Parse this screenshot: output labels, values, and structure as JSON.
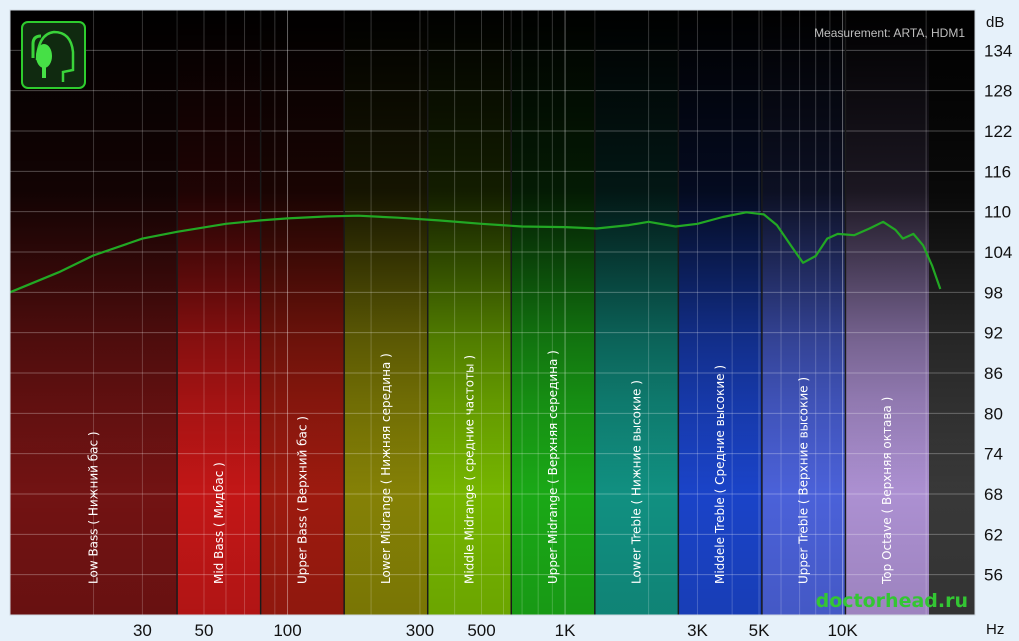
{
  "chart_data": {
    "type": "line",
    "measurement_label": "Measurement: ARTA, HDM1",
    "watermark": "doctorhead.ru",
    "y_unit": "dB",
    "x_unit": "Hz",
    "x_scale": "log",
    "xlim": [
      10,
      30000
    ],
    "ylim": [
      50,
      140
    ],
    "y_ticks": [
      134,
      128,
      122,
      116,
      110,
      104,
      98,
      92,
      86,
      80,
      74,
      68,
      62,
      56
    ],
    "x_tick_labels": [
      {
        "value": 30,
        "label": "30"
      },
      {
        "value": 50,
        "label": "50"
      },
      {
        "value": 100,
        "label": "100"
      },
      {
        "value": 300,
        "label": "300"
      },
      {
        "value": 500,
        "label": "500"
      },
      {
        "value": 1000,
        "label": "1K"
      },
      {
        "value": 3000,
        "label": "3K"
      },
      {
        "value": 5000,
        "label": "5K"
      },
      {
        "value": 10000,
        "label": "10K"
      }
    ],
    "grid": true,
    "bands": [
      {
        "label": "Low Bass ( Нижний бас )",
        "from": 10,
        "to": 40,
        "color": "#7a1414"
      },
      {
        "label": "Mid Bass ( Мидбас )",
        "from": 40,
        "to": 80,
        "color": "#d01818"
      },
      {
        "label": "Upper Bass ( Верхний бас )",
        "from": 80,
        "to": 160,
        "color": "#a81c10"
      },
      {
        "label": "Lower Midrange ( Нижняя середина )",
        "from": 160,
        "to": 320,
        "color": "#8e8a06"
      },
      {
        "label": "Middle Midrange ( средние частоты )",
        "from": 320,
        "to": 640,
        "color": "#7ec200"
      },
      {
        "label": "Upper Midrange ( Верхняя середина )",
        "from": 640,
        "to": 1280,
        "color": "#1cb418"
      },
      {
        "label": "Lower Treble ( Нижние высокие )",
        "from": 1280,
        "to": 2560,
        "color": "#129a8a"
      },
      {
        "label": "Middele Treble ( Средние высокие )",
        "from": 2560,
        "to": 5120,
        "color": "#1c48d6"
      },
      {
        "label": "Upper Treble ( Верхние высокие )",
        "from": 5120,
        "to": 10240,
        "color": "#5068e8"
      },
      {
        "label": "Top Octave ( Верхняя октава )",
        "from": 10240,
        "to": 20480,
        "color": "#b89ae0"
      }
    ],
    "series": [
      {
        "color": "#22a824",
        "points": [
          [
            10,
            98
          ],
          [
            15,
            101
          ],
          [
            20,
            103.5
          ],
          [
            30,
            106
          ],
          [
            40,
            107
          ],
          [
            60,
            108.2
          ],
          [
            80,
            108.7
          ],
          [
            100,
            109
          ],
          [
            140,
            109.3
          ],
          [
            180,
            109.4
          ],
          [
            250,
            109.1
          ],
          [
            350,
            108.7
          ],
          [
            500,
            108.2
          ],
          [
            700,
            107.8
          ],
          [
            1000,
            107.7
          ],
          [
            1300,
            107.5
          ],
          [
            1700,
            108
          ],
          [
            2000,
            108.5
          ],
          [
            2500,
            107.8
          ],
          [
            3000,
            108.2
          ],
          [
            3700,
            109.2
          ],
          [
            4500,
            109.9
          ],
          [
            5200,
            109.6
          ],
          [
            5800,
            108
          ],
          [
            6500,
            105
          ],
          [
            7200,
            102.4
          ],
          [
            8000,
            103.4
          ],
          [
            8800,
            106
          ],
          [
            9600,
            106.7
          ],
          [
            11000,
            106.5
          ],
          [
            12500,
            107.5
          ],
          [
            14000,
            108.5
          ],
          [
            15500,
            107.3
          ],
          [
            16500,
            106
          ],
          [
            18000,
            106.7
          ],
          [
            19500,
            105
          ],
          [
            21000,
            102
          ],
          [
            22500,
            98.5
          ]
        ]
      }
    ]
  }
}
